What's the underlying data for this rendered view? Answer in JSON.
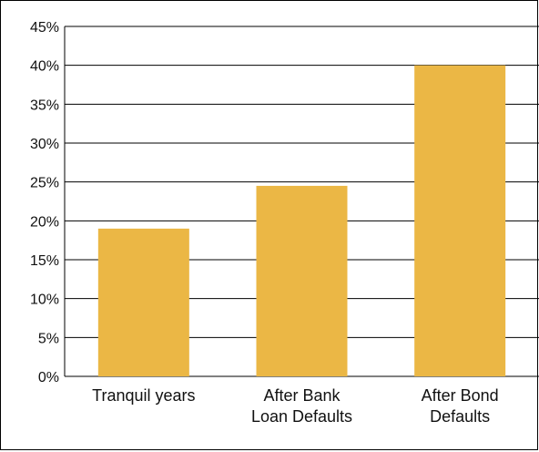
{
  "chart_data": {
    "type": "bar",
    "categories": [
      [
        "Tranquil years"
      ],
      [
        "After Bank",
        "Loan Defaults"
      ],
      [
        "After Bond",
        "Defaults"
      ]
    ],
    "values": [
      19,
      24.5,
      40
    ],
    "ylim": [
      0,
      45
    ],
    "ytick_step": 5,
    "ytick_suffix": "%",
    "grid": true,
    "bar_color": "#EBB745",
    "title": "",
    "xlabel": "",
    "ylabel": ""
  }
}
